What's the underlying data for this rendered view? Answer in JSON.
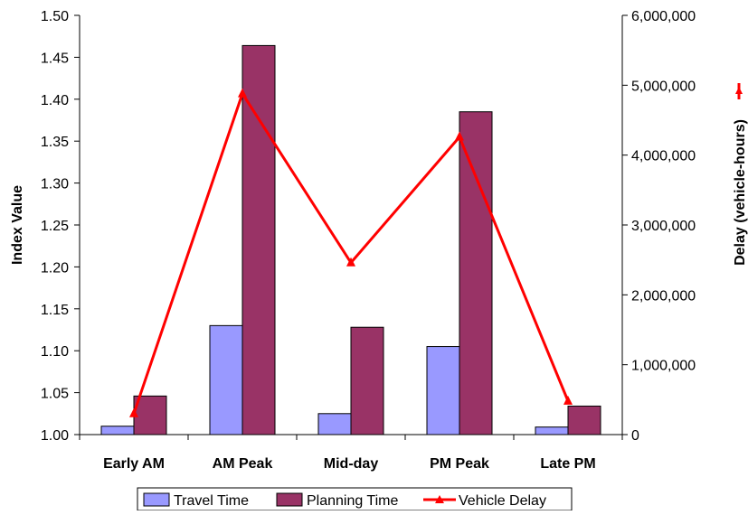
{
  "chart_data": {
    "type": "bar",
    "categories": [
      "Early AM",
      "AM Peak",
      "Mid-day",
      "PM Peak",
      "Late PM"
    ],
    "series": [
      {
        "name": "Travel Time",
        "axis": "left",
        "kind": "bar",
        "color": "#9999FF",
        "values": [
          1.01,
          1.13,
          1.025,
          1.105,
          1.009
        ]
      },
      {
        "name": "Planning Time",
        "axis": "left",
        "kind": "bar",
        "color": "#993366",
        "values": [
          1.046,
          1.464,
          1.128,
          1.385,
          1.034
        ]
      },
      {
        "name": "Vehicle Delay",
        "axis": "right",
        "kind": "line",
        "color": "#FF0000",
        "values": [
          300000,
          4880000,
          2460000,
          4260000,
          480000
        ]
      }
    ],
    "ylabel": "Index Value",
    "y2label": "Delay (vehicle-hours)",
    "ylim": [
      1.0,
      1.5
    ],
    "y2lim": [
      0,
      6000000
    ],
    "yticks": [
      "1.00",
      "1.05",
      "1.10",
      "1.15",
      "1.20",
      "1.25",
      "1.30",
      "1.35",
      "1.40",
      "1.45",
      "1.50"
    ],
    "y2ticks": [
      "0",
      "1,000,000",
      "2,000,000",
      "3,000,000",
      "4,000,000",
      "5,000,000",
      "6,000,000"
    ],
    "grid": false,
    "legend_position": "bottom"
  }
}
